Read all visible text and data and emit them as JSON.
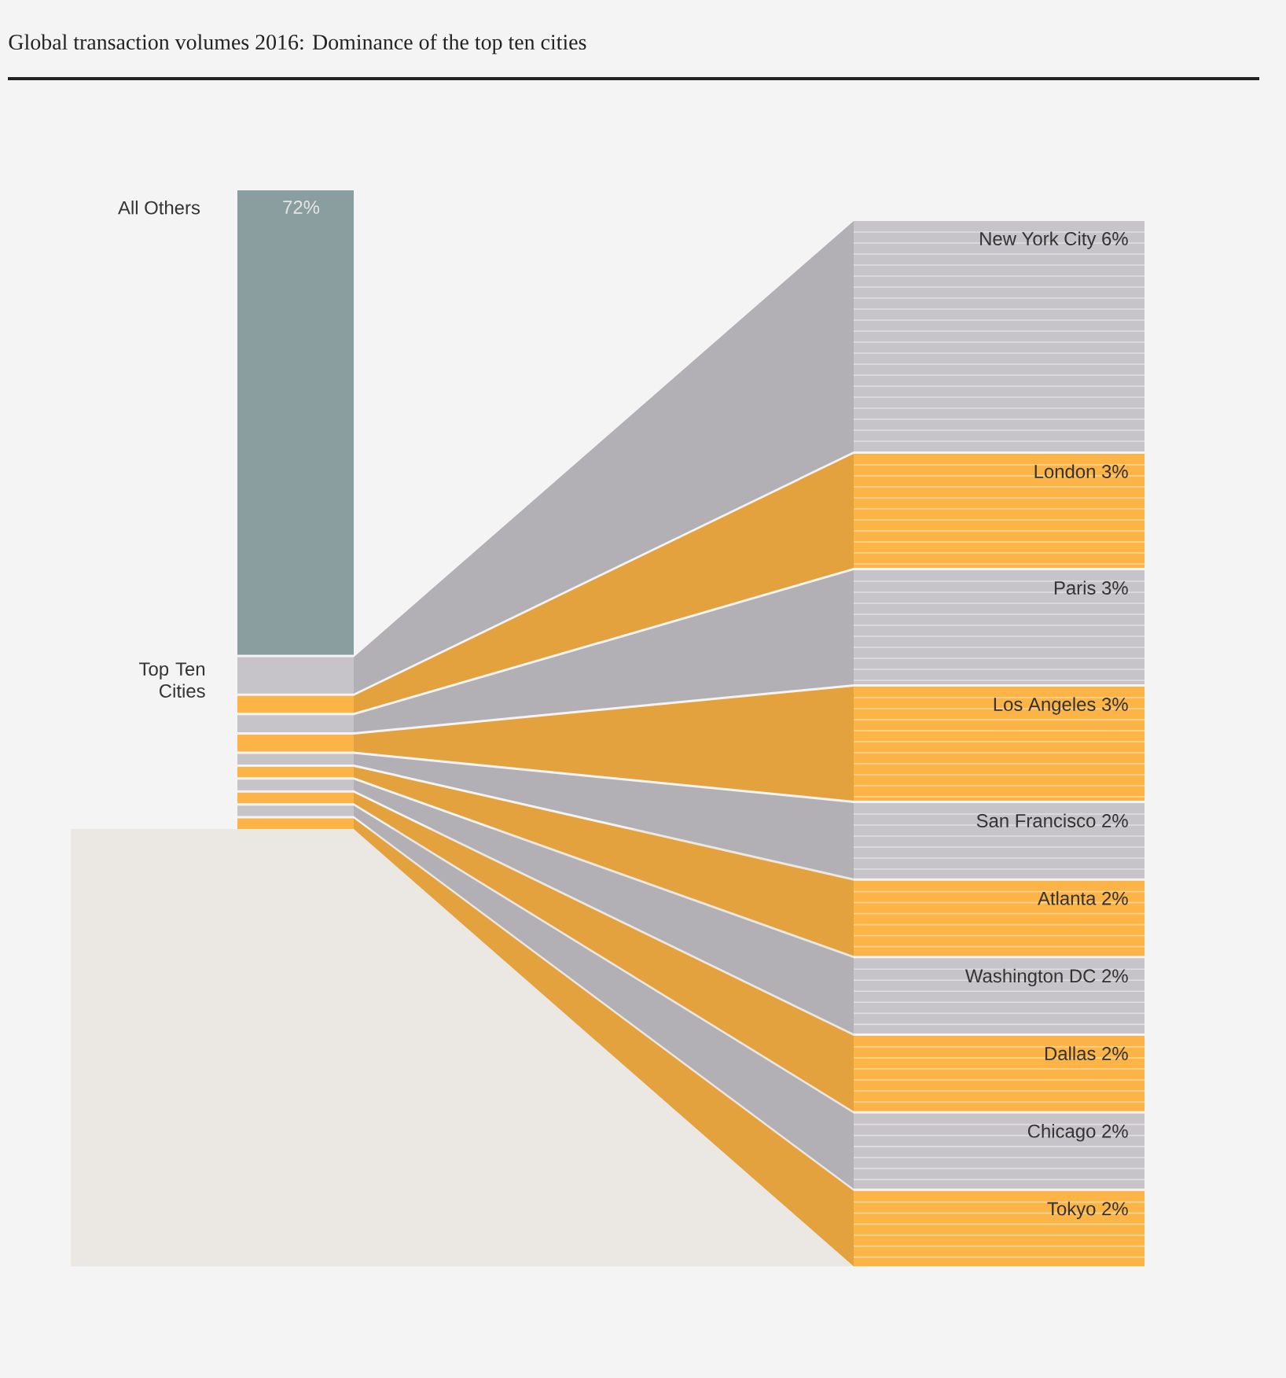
{
  "chart_data": {
    "type": "other",
    "title": "Global transaction volumes 2016: Dominance of the top ten cities",
    "categories": [
      "All Others",
      "New York City",
      "London",
      "Paris",
      "Los Angeles",
      "San Francisco",
      "Atlanta",
      "Washington DC",
      "Dallas",
      "Chicago",
      "Tokyo"
    ],
    "values": [
      72,
      6,
      3,
      3,
      3,
      2,
      2,
      2,
      2,
      2,
      2
    ],
    "value_labels": [
      "72%",
      "6%",
      "3%",
      "3%",
      "3%",
      "2%",
      "2%",
      "2%",
      "2%",
      "2%",
      "2%"
    ],
    "colors": [
      "#8a9ea0",
      "#c6c4c8",
      "#fdb446",
      "#c6c4c8",
      "#fdb446",
      "#c6c4c8",
      "#fdb446",
      "#c6c4c8",
      "#fdb446",
      "#c6c4c8",
      "#fdb446"
    ],
    "annotations": [
      "Top Ten Cities"
    ]
  }
}
